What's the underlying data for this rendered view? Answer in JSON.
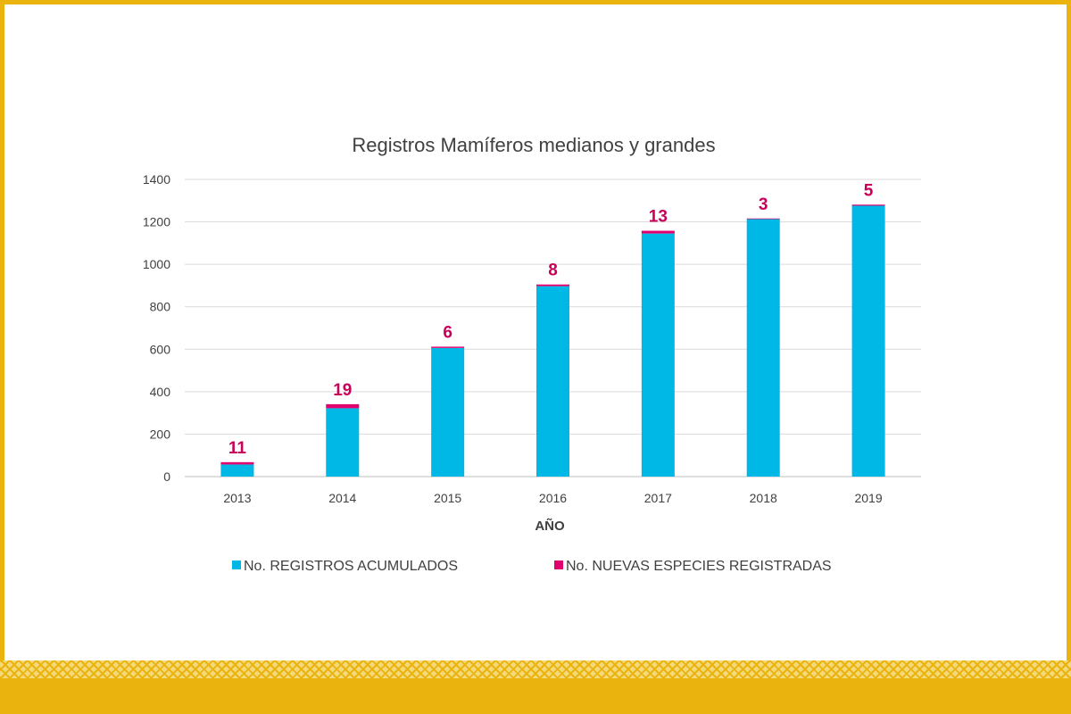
{
  "chart_data": {
    "type": "bar",
    "stacked": true,
    "title": "Registros Mamíferos medianos y grandes",
    "xlabel": "AÑO",
    "ylabel": "",
    "categories": [
      "2013",
      "2014",
      "2015",
      "2016",
      "2017",
      "2018",
      "2019"
    ],
    "yticks": [
      "0",
      "200",
      "400",
      "600",
      "800",
      "1000",
      "1200",
      "1400"
    ],
    "ylim": [
      0,
      1400
    ],
    "grid": true,
    "legend_position": "bottom",
    "series": [
      {
        "name": "No. REGISTROS ACUMULADOS",
        "color": "#00b8e6",
        "values": [
          57,
          322,
          606,
          897,
          1145,
          1213,
          1276
        ]
      },
      {
        "name": "No. NUEVAS ESPECIES REGISTRADAS",
        "color": "#e0006e",
        "values": [
          11,
          19,
          6,
          8,
          13,
          3,
          5
        ]
      }
    ],
    "data_labels": [
      "11",
      "19",
      "6",
      "8",
      "13",
      "3",
      "5"
    ]
  },
  "colors": {
    "frame": "#eab30e",
    "label": "#c8005a",
    "grid": "#d9d9d9",
    "text": "#404040"
  }
}
